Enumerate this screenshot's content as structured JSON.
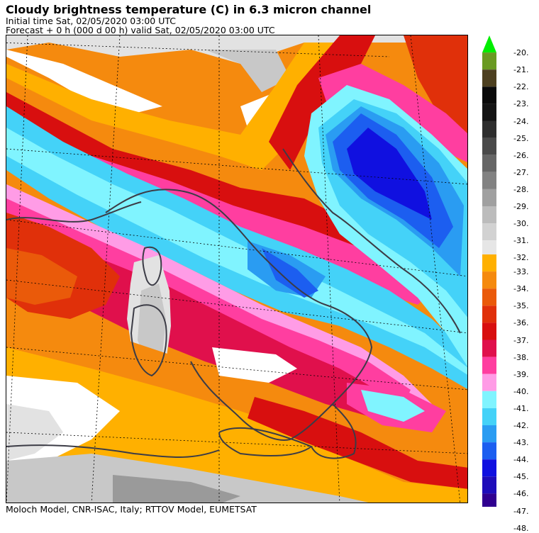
{
  "header": {
    "title": "Cloudy brightness temperature (C) in    6.3 micron channel",
    "initial_time": "Initial time  Sat, 02/05/2020  03:00 UTC",
    "forecast": "Forecast  +   0 h  (000 d 00 h)  valid Sat, 02/05/2020 03:00 UTC"
  },
  "footer": {
    "credit": "Moloch Model, CNR-ISAC, Italy; RTTOV Model, EUMETSAT"
  },
  "colorbar": {
    "top_group": [
      {
        "label": "-20.",
        "color": "#00ee00"
      },
      {
        "label": "-21.",
        "color": "#6a9a22"
      },
      {
        "label": "-22.",
        "color": "#4d4020"
      },
      {
        "label": "-23.",
        "color": "#0a0a0a"
      },
      {
        "label": "-24.",
        "color": "#141414"
      },
      {
        "label": "-25.",
        "color": "#2e2e2e"
      },
      {
        "label": "-26.",
        "color": "#4a4a4a"
      },
      {
        "label": "-27.",
        "color": "#666666"
      },
      {
        "label": "-28.",
        "color": "#828282"
      },
      {
        "label": "-29.",
        "color": "#a0a0a0"
      },
      {
        "label": "-30.",
        "color": "#bcbcbc"
      },
      {
        "label": "-31.",
        "color": "#d2d2d2"
      },
      {
        "label": "-32.",
        "color": "#e6e6e6"
      }
    ],
    "bottom_group": [
      {
        "label": "-33.",
        "color": "#ffb000"
      },
      {
        "label": "-34.",
        "color": "#f58a0e"
      },
      {
        "label": "-35.",
        "color": "#ea5a0a"
      },
      {
        "label": "-36.",
        "color": "#e0300a"
      },
      {
        "label": "-37.",
        "color": "#d80f0f"
      },
      {
        "label": "-38.",
        "color": "#e0104c"
      },
      {
        "label": "-39.",
        "color": "#ff3ea0"
      },
      {
        "label": "-40.",
        "color": "#ff9ce6"
      },
      {
        "label": "-41.",
        "color": "#80f4ff"
      },
      {
        "label": "-42.",
        "color": "#44d2f8"
      },
      {
        "label": "-43.",
        "color": "#2a9cf2"
      },
      {
        "label": "-44.",
        "color": "#1c5ef0"
      },
      {
        "label": "-45.",
        "color": "#1010e0"
      },
      {
        "label": "-46.",
        "color": "#1e0cba"
      },
      {
        "label": "-47.",
        "color": "#300090"
      },
      {
        "label": "-48.",
        "color": "#300090"
      }
    ]
  },
  "map": {
    "colors": {
      "white": "#ffffff",
      "grey_light": "#e2e2e2",
      "grey": "#c8c8c8",
      "grey_dark": "#9a9a9a",
      "orange_light": "#ffb000",
      "orange": "#f58a0e",
      "orange_dark": "#ea5a0a",
      "red": "#e0300a",
      "red_dark": "#d80f0f",
      "crimson": "#e0104c",
      "pink": "#ff3ea0",
      "pink_light": "#ff9ce6",
      "cyan": "#80f4ff",
      "sky": "#44d2f8",
      "blue_light": "#2a9cf2",
      "blue": "#1c5ef0",
      "blue_dark": "#1010e0",
      "coast": "#3c3c46"
    }
  }
}
